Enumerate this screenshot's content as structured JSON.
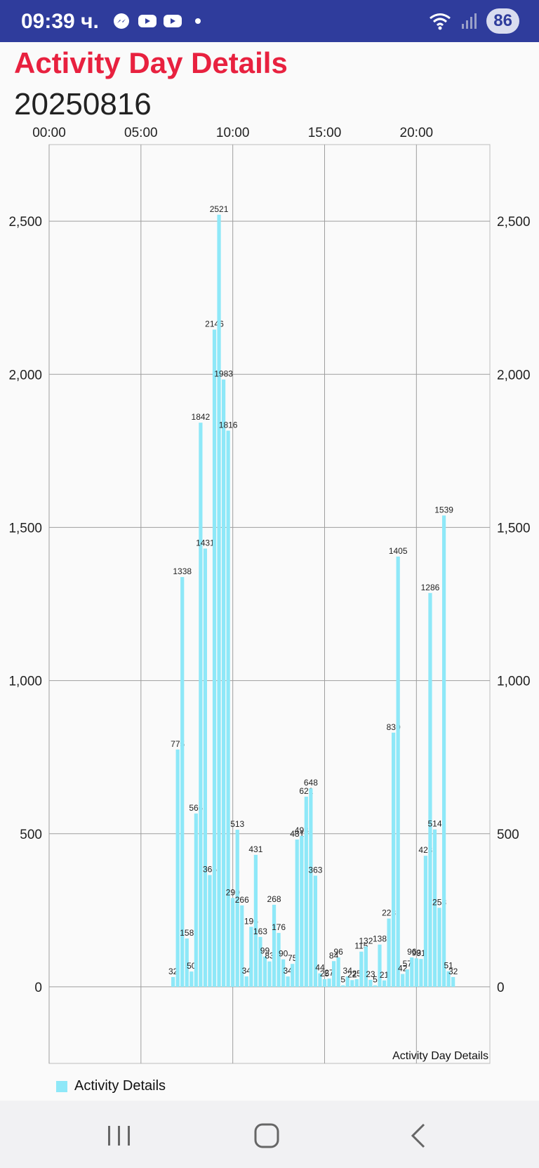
{
  "status_bar": {
    "time": "09:39 ч.",
    "battery": "86",
    "notification_icons": [
      "messenger-icon",
      "youtube-icon",
      "youtube-icon",
      "dot-icon"
    ],
    "right_icons": [
      "wifi-icon",
      "signal-icon"
    ]
  },
  "header": {
    "title": "Activity Day Details",
    "date": "20250816"
  },
  "legend": {
    "label": "Activity Details",
    "color": "#8ee8f8"
  },
  "colors": {
    "accent": "#e8213f",
    "status_bar": "#2f3c9c",
    "bar": "#8ee8f8"
  },
  "chart_data": {
    "type": "bar",
    "description": "Activity Day Details",
    "x_unit": "hours",
    "xlim": [
      0,
      24
    ],
    "x_ticks": [
      {
        "value": 0,
        "label": "00:00"
      },
      {
        "value": 5,
        "label": "05:00"
      },
      {
        "value": 10,
        "label": "10:00"
      },
      {
        "value": 15,
        "label": "15:00"
      },
      {
        "value": 20,
        "label": "20:00"
      }
    ],
    "ylim": [
      -250,
      2750
    ],
    "y_ticks": [
      0,
      500,
      1000,
      1500,
      2000,
      2500
    ],
    "y_tick_labels": [
      "0",
      "500",
      "1,000",
      "1,500",
      "2,000",
      "2,500"
    ],
    "grid": true,
    "legend_position": "bottom-left",
    "series": [
      {
        "name": "Activity Details",
        "x": [
          6.75,
          7.0,
          7.25,
          7.5,
          7.75,
          8.0,
          8.25,
          8.5,
          8.75,
          9.0,
          9.25,
          9.5,
          9.75,
          10.0,
          10.25,
          10.5,
          10.75,
          11.0,
          11.25,
          11.5,
          11.75,
          12.0,
          12.25,
          12.5,
          12.75,
          13.0,
          13.25,
          13.5,
          13.75,
          14.0,
          14.25,
          14.5,
          14.75,
          15.0,
          15.25,
          15.5,
          15.75,
          16.0,
          16.25,
          16.5,
          16.75,
          17.0,
          17.25,
          17.5,
          17.75,
          18.0,
          18.25,
          18.5,
          18.75,
          19.0,
          19.25,
          19.5,
          19.75,
          20.0,
          20.25,
          20.5,
          20.75,
          21.0,
          21.25,
          21.5,
          21.75,
          22.0
        ],
        "values": [
          32,
          775,
          1338,
          158,
          50,
          566,
          1842,
          1431,
          365,
          2146,
          2521,
          1983,
          1816,
          290,
          513,
          266,
          34,
          196,
          431,
          163,
          99,
          83,
          268,
          176,
          90,
          34,
          75,
          481,
          493,
          621,
          648,
          363,
          44,
          25,
          27,
          84,
          96,
          5,
          34,
          22,
          25,
          115,
          132,
          23,
          5,
          138,
          21,
          223,
          830,
          1405,
          42,
          57,
          96,
          93,
          91,
          428,
          1286,
          514,
          258,
          1539,
          51,
          32
        ],
        "data_labels": [
          "32",
          "775",
          "1338",
          "158",
          "50",
          "566",
          "1842",
          "1431",
          "365",
          "2146",
          "2521",
          "1983",
          "1816",
          "290",
          "513",
          "266",
          "34",
          "196",
          "431",
          "163",
          "99",
          "83",
          "268",
          "176",
          "90",
          "34",
          "75",
          "481",
          "493",
          "621",
          "648",
          "363",
          "44",
          "25",
          "27",
          "84",
          "96",
          "5",
          "34",
          "22",
          "25",
          "115",
          "132",
          "23",
          "5",
          "138",
          "21",
          "223",
          "830",
          "1405",
          "42",
          "57",
          "96",
          "93",
          "91",
          "428",
          "1286",
          "514",
          "258",
          "1539",
          "51",
          "32"
        ]
      }
    ]
  }
}
